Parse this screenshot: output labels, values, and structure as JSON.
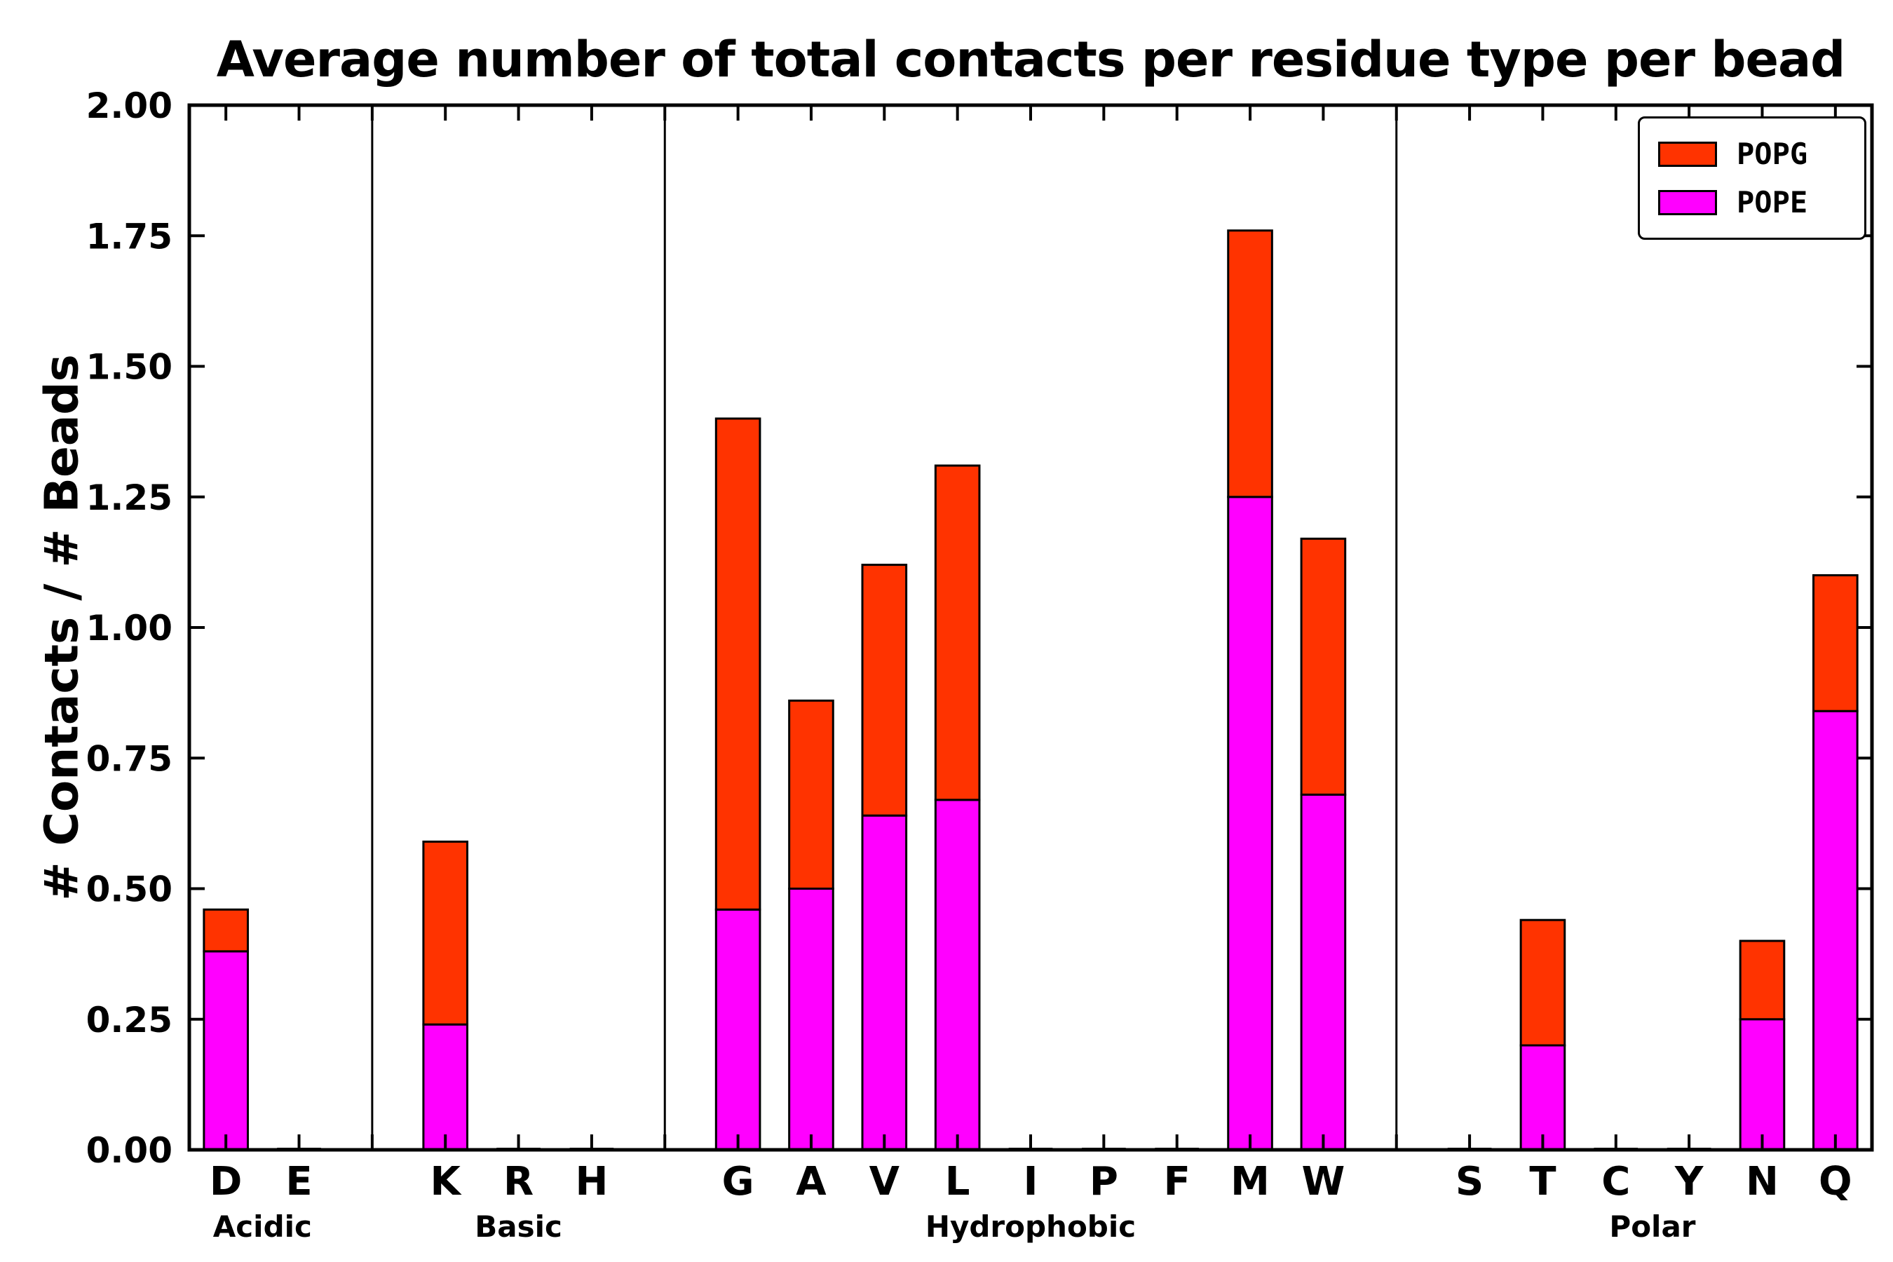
{
  "chart_data": {
    "type": "bar",
    "title": "Average number of total contacts per residue type per bead",
    "ylabel": "# Contacts / # Beads",
    "xlabel": "",
    "ylim": [
      0,
      2
    ],
    "ytick_step": 0.25,
    "ytick_labels": [
      "0.00",
      "0.25",
      "0.50",
      "0.75",
      "1.00",
      "1.25",
      "1.50",
      "1.75",
      "2.00"
    ],
    "grid": "off",
    "legend_position": "upper right",
    "legend": [
      {
        "name": "POPG",
        "color": "#ff3300"
      },
      {
        "name": "POPE",
        "color": "#ff00ff"
      }
    ],
    "groups": [
      {
        "label": "Acidic",
        "residues": [
          "D",
          "E"
        ]
      },
      {
        "label": "Basic",
        "residues": [
          "K",
          "R",
          "H"
        ]
      },
      {
        "label": "Hydrophobic",
        "residues": [
          "G",
          "A",
          "V",
          "L",
          "I",
          "P",
          "F",
          "M",
          "W"
        ]
      },
      {
        "label": "Polar",
        "residues": [
          "S",
          "T",
          "C",
          "Y",
          "N",
          "Q"
        ]
      }
    ],
    "series": [
      {
        "name": "POPE",
        "color": "#ff00ff",
        "stack_order": "bottom",
        "values": {
          "D": 0.38,
          "E": 0.0,
          "K": 0.24,
          "R": 0.0,
          "H": 0.0,
          "G": 0.46,
          "A": 0.5,
          "V": 0.64,
          "L": 0.67,
          "I": 0.0,
          "P": 0.0,
          "F": 0.0,
          "M": 1.25,
          "W": 0.68,
          "S": 0.0,
          "T": 0.2,
          "C": 0.0,
          "Y": 0.0,
          "N": 0.25,
          "Q": 0.84
        }
      },
      {
        "name": "POPG",
        "color": "#ff3300",
        "stack_order": "top",
        "values": {
          "D": 0.08,
          "E": 0.0,
          "K": 0.35,
          "R": 0.0,
          "H": 0.0,
          "G": 0.94,
          "A": 0.36,
          "V": 0.48,
          "L": 0.64,
          "I": 0.0,
          "P": 0.0,
          "F": 0.0,
          "M": 0.51,
          "W": 0.49,
          "S": 0.0,
          "T": 0.24,
          "C": 0.0,
          "Y": 0.0,
          "N": 0.15,
          "Q": 0.26
        }
      }
    ],
    "colors": {
      "axis": "#000000",
      "background": "#ffffff",
      "bar_edge": "#000000"
    }
  }
}
